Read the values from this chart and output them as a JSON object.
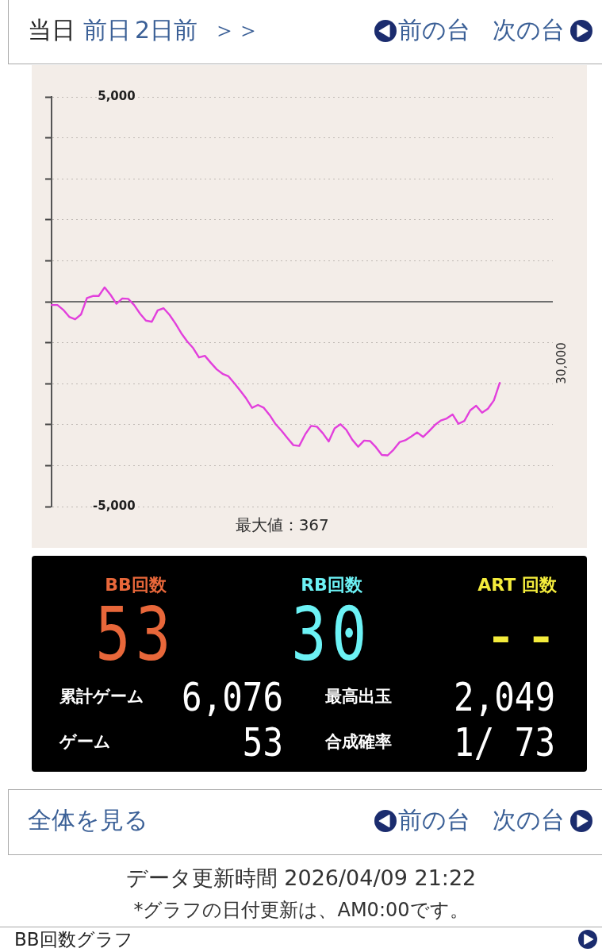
{
  "chart_data": [
    {
      "type": "other",
      "annotations": [
        "当日",
        "前日",
        "2日前",
        "＞＞",
        "前の台",
        "次の台"
      ]
    },
    {
      "type": "line",
      "categories": [
        null,
        null,
        null,
        null,
        null,
        null,
        null,
        null,
        null,
        null,
        null,
        null,
        null,
        null,
        null,
        null,
        null,
        null,
        null,
        null,
        null,
        null,
        null,
        null,
        null,
        null,
        null,
        null,
        null,
        null,
        null,
        null,
        null,
        null,
        null,
        null,
        null,
        null,
        null,
        null,
        null,
        null,
        null,
        null,
        null,
        null,
        null,
        null,
        null,
        null,
        null,
        null,
        null,
        null,
        null,
        null,
        null,
        null,
        null,
        null,
        null,
        null,
        null,
        null,
        null,
        null,
        null,
        null,
        null,
        null,
        null,
        null,
        null,
        null,
        null,
        null,
        null,
        null,
        null,
        null,
        null,
        null,
        null,
        null,
        null,
        null
      ],
      "values": [
        -80,
        -80,
        -200,
        -370,
        -430,
        -310,
        90,
        140,
        140,
        350,
        170,
        -50,
        80,
        70,
        -80,
        -290,
        -460,
        -490,
        -210,
        -160,
        -320,
        -530,
        -770,
        -970,
        -1130,
        -1360,
        -1320,
        -1490,
        -1650,
        -1760,
        -1820,
        -1990,
        -2170,
        -2360,
        -2590,
        -2520,
        -2590,
        -2770,
        -2990,
        -3150,
        -3330,
        -3500,
        -3520,
        -3240,
        -3030,
        -3050,
        -3210,
        -3410,
        -3090,
        -2990,
        -3130,
        -3370,
        -3540,
        -3390,
        -3400,
        -3550,
        -3740,
        -3750,
        -3610,
        -3430,
        -3380,
        -3290,
        -3190,
        -3300,
        -3160,
        -3010,
        -2900,
        -2850,
        -2750,
        -2980,
        -2910,
        -2650,
        -2540,
        -2710,
        -2610,
        -2410,
        -1980,
        null,
        null,
        null,
        null,
        null,
        null,
        null,
        null,
        null
      ],
      "color": "#e23fdc",
      "ylim": [
        -5000,
        5000
      ],
      "yticks": [
        {
          "value": 5000,
          "label": "5,000"
        },
        {
          "value": 4000,
          "label": null
        },
        {
          "value": 3000,
          "label": null
        },
        {
          "value": 2000,
          "label": null
        },
        {
          "value": 1000,
          "label": null
        },
        {
          "value": 0,
          "label": null
        },
        {
          "value": -1000,
          "label": null
        },
        {
          "value": -2000,
          "label": null
        },
        {
          "value": -3000,
          "label": null
        },
        {
          "value": -4000,
          "label": null
        },
        {
          "value": -5000,
          "label": "-5,000"
        }
      ],
      "grid": "y",
      "tick_labels": "y",
      "ref_lines": [
        {
          "axis": "y",
          "value": 0,
          "color": "#6e6e6e"
        }
      ],
      "annotations": [
        "最大値：367",
        "30,000"
      ]
    },
    {
      "type": "other",
      "annotations": [
        "BB回数",
        "53",
        "RB回数",
        "30",
        "ART 回数",
        "--",
        "累計ゲーム",
        "6,076",
        "最高出玉",
        "2,049",
        "ゲーム",
        "53",
        "合成確率",
        "1/ 73"
      ]
    },
    {
      "type": "other",
      "annotations": [
        "全体を見る",
        "前の台",
        "次の台",
        "データ更新時間 2026/04/09 21:22",
        "*グラフの日付更新は、AM0:00です。",
        "BB回数グラフ"
      ]
    }
  ]
}
